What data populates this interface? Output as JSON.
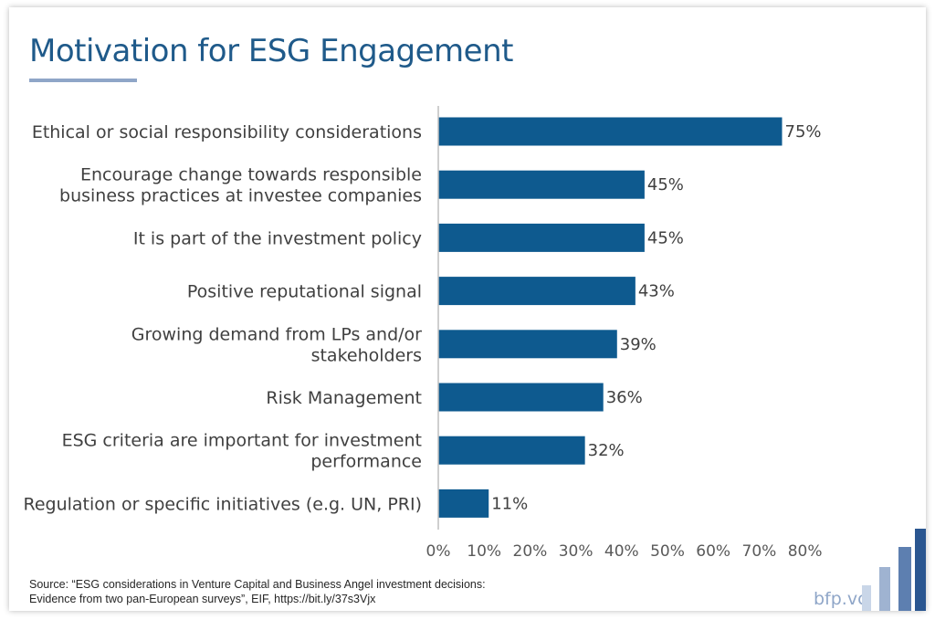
{
  "title": "Motivation for ESG Engagement",
  "source": "Source: “ESG considerations in Venture Capital and Business Angel investment decisions: Evidence from two pan-European surveys”, EIF, https://bit.ly/37s3Vjx",
  "brand": "bfp.vc",
  "colors": {
    "bar": "#0e5a8f",
    "title": "#1f5a8a",
    "accent": "#8fa6c8"
  },
  "chart_data": {
    "type": "bar",
    "orientation": "horizontal",
    "categories": [
      [
        "Ethical or social responsibility considerations"
      ],
      [
        "Encourage change towards responsible",
        "business practices at investee companies"
      ],
      [
        "It is part of the investment policy"
      ],
      [
        "Positive reputational signal"
      ],
      [
        "Growing demand from LPs and/or",
        "stakeholders"
      ],
      [
        "Risk Management"
      ],
      [
        "ESG criteria are important for investment",
        "performance"
      ],
      [
        "Regulation or specific initiatives (e.g. UN, PRI)"
      ]
    ],
    "values": [
      75,
      45,
      45,
      43,
      39,
      36,
      32,
      11
    ],
    "value_labels": [
      "75%",
      "45%",
      "45%",
      "43%",
      "39%",
      "36%",
      "32%",
      "11%"
    ],
    "xlim": [
      0,
      80
    ],
    "xticks": [
      0,
      10,
      20,
      30,
      40,
      50,
      60,
      70,
      80
    ],
    "xtick_labels": [
      "0%",
      "10%",
      "20%",
      "30%",
      "40%",
      "50%",
      "60%",
      "70%",
      "80%"
    ],
    "grid": false,
    "legend": "none"
  }
}
